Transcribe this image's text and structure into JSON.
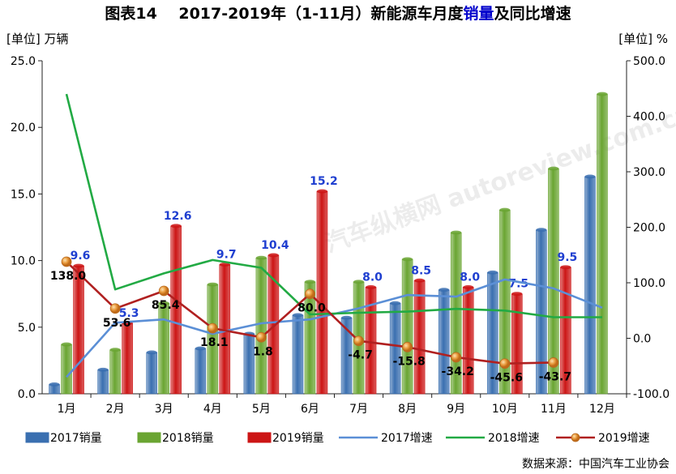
{
  "chart_data": {
    "type": "bar",
    "title_prefix": "图表14",
    "title_main": "2017-2019年（1-11月）新能源车月度",
    "title_highlight": "销量",
    "title_suffix": "及同比增速",
    "left_unit": "[单位] 万辆",
    "right_unit": "[单位] %",
    "source": "数据来源：中国汽车工业协会",
    "watermark": "汽车纵横网 autoreview.com.cn",
    "categories": [
      "1月",
      "2月",
      "3月",
      "4月",
      "5月",
      "6月",
      "7月",
      "8月",
      "9月",
      "10月",
      "11月",
      "12月"
    ],
    "y_left": {
      "min": 0,
      "max": 25,
      "ticks": [
        "0.0",
        "5.0",
        "10.0",
        "15.0",
        "20.0",
        "25.0"
      ]
    },
    "y_right": {
      "min": -100,
      "max": 500,
      "ticks": [
        "-100.0",
        "0.0",
        "100.0",
        "200.0",
        "300.0",
        "400.0",
        "500.0"
      ]
    },
    "bar_series": [
      {
        "name": "2017销量",
        "color": "#3a6fb0",
        "values": [
          0.7,
          1.8,
          3.1,
          3.4,
          4.5,
          5.9,
          5.7,
          6.8,
          7.8,
          9.1,
          12.3,
          16.3
        ]
      },
      {
        "name": "2018销量",
        "color": "#6aa532",
        "values": [
          3.7,
          3.3,
          6.8,
          8.2,
          10.2,
          8.4,
          8.4,
          10.1,
          12.1,
          13.8,
          16.9,
          22.5
        ]
      },
      {
        "name": "2019销量",
        "color": "#cc1515",
        "values": [
          9.6,
          5.3,
          12.6,
          9.7,
          10.4,
          15.2,
          8.0,
          8.5,
          8.0,
          7.5,
          9.5,
          null
        ],
        "labels": [
          "9.6",
          "5.3",
          "12.6",
          "9.7",
          "10.4",
          "15.2",
          "8.0",
          "8.5",
          "8.0",
          "7.5",
          "9.5",
          ""
        ]
      }
    ],
    "line_series": [
      {
        "name": "2017增速",
        "color": "#5b8fd6",
        "values": [
          -70,
          28,
          34,
          8,
          27,
          34,
          54,
          78,
          75,
          106,
          90,
          55
        ]
      },
      {
        "name": "2018增速",
        "color": "#22aa44",
        "values": [
          440,
          88,
          117,
          141,
          127,
          43,
          46,
          48,
          53,
          50,
          38,
          38
        ]
      },
      {
        "name": "2019增速",
        "color": "#b02020",
        "values": [
          138.0,
          53.6,
          85.4,
          18.1,
          1.8,
          80.0,
          -4.7,
          -15.8,
          -34.2,
          -45.6,
          -43.7,
          null
        ],
        "labels": [
          "138.0",
          "53.6",
          "85.4",
          "18.1",
          "1.8",
          "80.0",
          "-4.7",
          "-15.8",
          "-34.2",
          "-45.6",
          "-43.7",
          ""
        ]
      }
    ],
    "legend_position": "bottom",
    "grid": false
  }
}
